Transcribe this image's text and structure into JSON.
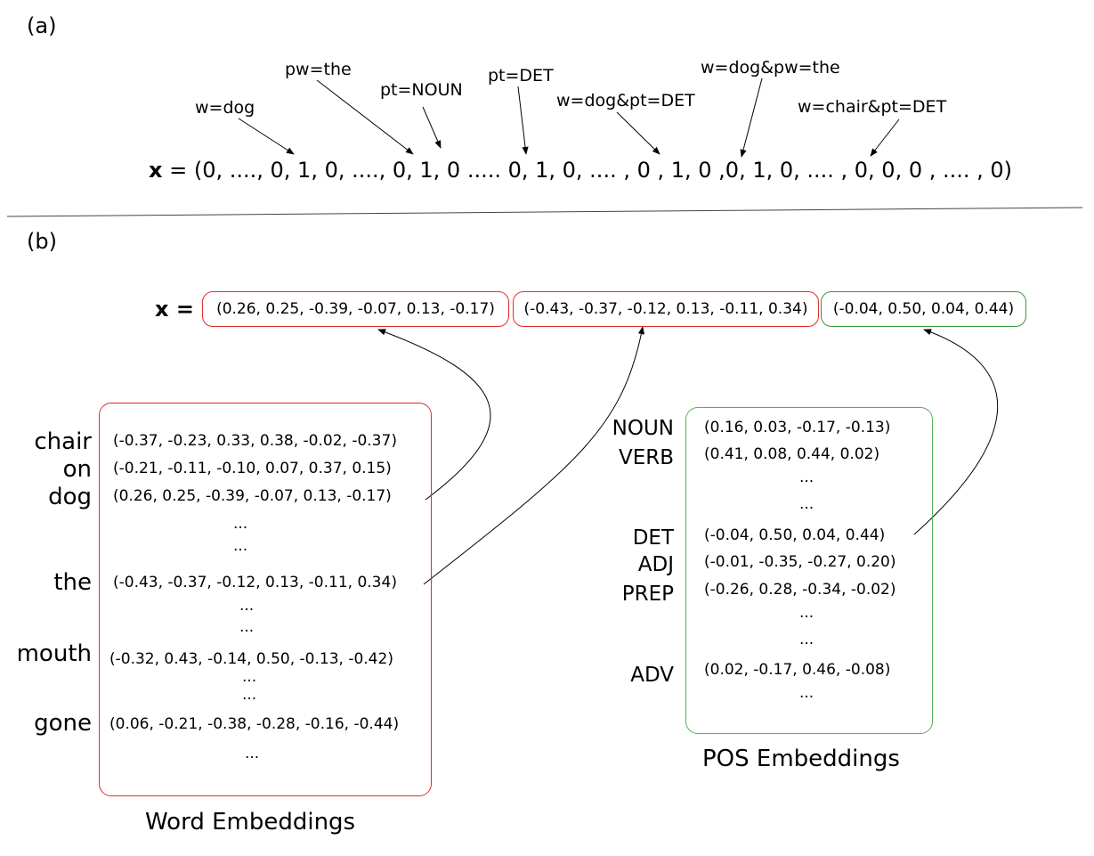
{
  "panel_a": {
    "label": "(a)",
    "features": [
      "w=dog",
      "pw=the",
      "pt=NOUN",
      "pt=DET",
      "w=dog&pt=DET",
      "w=dog&pw=the",
      "w=chair&pt=DET"
    ],
    "vector_name": "x",
    "vector_rest": " = (0, ...., 0, 1, 0, ...., 0, 1, 0 ..... 0, 1, 0, .... , 0 , 1, 0 ,0, 1, 0, .... , 0, 0, 0 , .... , 0)"
  },
  "panel_b": {
    "label": "(b)",
    "vector_name": "x",
    "equals": "=",
    "segments": [
      "(0.26, 0.25, -0.39, -0.07, 0.13, -0.17)",
      "(-0.43, -0.37, -0.12, 0.13, -0.11, 0.34)",
      "(-0.04, 0.50, 0.04, 0.44)"
    ],
    "word_embeddings": {
      "caption": "Word Embeddings",
      "words": [
        "chair",
        "on",
        "dog",
        "the",
        "mouth",
        "gone"
      ],
      "rows": [
        "(-0.37, -0.23, 0.33, 0.38, -0.02, -0.37)",
        "(-0.21, -0.11, -0.10, 0.07, 0.37, 0.15)",
        "(0.26, 0.25, -0.39, -0.07, 0.13, -0.17)",
        "...",
        "...",
        "(-0.43, -0.37, -0.12, 0.13, -0.11, 0.34)",
        "...",
        "...",
        "(-0.32, 0.43, -0.14, 0.50, -0.13, -0.42)",
        "...",
        "...",
        "(0.06, -0.21, -0.38, -0.28, -0.16, -0.44)",
        "..."
      ]
    },
    "pos_embeddings": {
      "caption": "POS Embeddings",
      "tags": [
        "NOUN",
        "VERB",
        "DET",
        "ADJ",
        "PREP",
        "ADV"
      ],
      "rows": [
        "(0.16, 0.03, -0.17, -0.13)",
        "(0.41, 0.08, 0.44, 0.02)",
        "...",
        "...",
        "(-0.04, 0.50, 0.04, 0.44)",
        "(-0.01, -0.35, -0.27, 0.20)",
        "(-0.26, 0.28, -0.34, -0.02)",
        "...",
        "...",
        "(0.02, -0.17, 0.46, -0.08)",
        "..."
      ]
    }
  }
}
